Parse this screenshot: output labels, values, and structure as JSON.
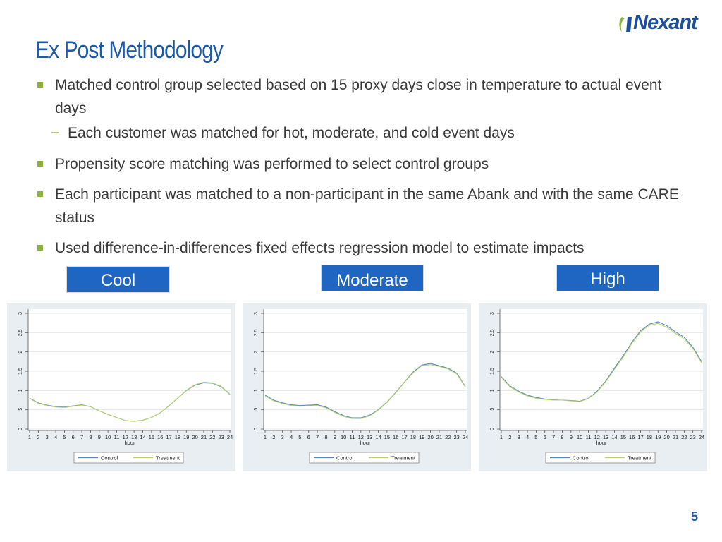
{
  "brand": {
    "name": "Nexant",
    "color": "#1d4f9c"
  },
  "slide": {
    "title": "Ex Post Methodology",
    "page_number": "5"
  },
  "bullets": [
    {
      "text": "Matched control group selected based on 15 proxy days close in temperature to actual event days"
    },
    {
      "sub": "Each customer was matched for hot, moderate, and cold event days"
    },
    {
      "text": "Propensity score matching was performed to select control groups"
    },
    {
      "text": "Each participant was matched to a non-participant in the same Abank and with the same CARE status"
    },
    {
      "text": "Used difference-in-differences fixed effects regression model to estimate impacts"
    }
  ],
  "labels": {
    "cool": "Cool",
    "moderate": "Moderate",
    "high": "High"
  },
  "colors": {
    "accent_green": "#8db43a",
    "label_blue": "#1f66c2",
    "control_line": "#5b86c4",
    "treatment_line": "#b7d36b"
  },
  "chart_data": [
    {
      "type": "line",
      "panel": "Cool",
      "xlabel": "hour",
      "x": [
        1,
        2,
        3,
        4,
        5,
        6,
        7,
        8,
        9,
        10,
        11,
        12,
        13,
        14,
        15,
        16,
        17,
        18,
        19,
        20,
        21,
        22,
        23,
        24
      ],
      "yticks": [
        "0",
        ".5",
        "1",
        "1.5",
        "2",
        "2.5",
        "3"
      ],
      "ylim": [
        0,
        3
      ],
      "xlim": [
        1,
        24
      ],
      "series": [
        {
          "name": "Control",
          "values": [
            0.8,
            0.68,
            0.62,
            0.58,
            0.57,
            0.6,
            0.63,
            0.58,
            0.47,
            0.38,
            0.3,
            0.22,
            0.2,
            0.23,
            0.3,
            0.42,
            0.6,
            0.8,
            1.0,
            1.14,
            1.2,
            1.19,
            1.1,
            0.9
          ]
        },
        {
          "name": "Treatment",
          "values": [
            0.79,
            0.67,
            0.61,
            0.57,
            0.56,
            0.59,
            0.62,
            0.58,
            0.47,
            0.38,
            0.3,
            0.22,
            0.2,
            0.23,
            0.3,
            0.42,
            0.6,
            0.8,
            1.01,
            1.15,
            1.22,
            1.2,
            1.11,
            0.91
          ]
        }
      ],
      "legend": "bottom"
    },
    {
      "type": "line",
      "panel": "Moderate",
      "xlabel": "hour",
      "x": [
        1,
        2,
        3,
        4,
        5,
        6,
        7,
        8,
        9,
        10,
        11,
        12,
        13,
        14,
        15,
        16,
        17,
        18,
        19,
        20,
        21,
        22,
        23,
        24
      ],
      "yticks": [
        "0",
        ".5",
        "1",
        "1.5",
        "2",
        "2.5",
        "3"
      ],
      "ylim": [
        0,
        3
      ],
      "xlim": [
        1,
        24
      ],
      "series": [
        {
          "name": "Control",
          "values": [
            0.88,
            0.75,
            0.68,
            0.63,
            0.61,
            0.62,
            0.63,
            0.57,
            0.45,
            0.35,
            0.29,
            0.29,
            0.36,
            0.5,
            0.7,
            0.95,
            1.22,
            1.48,
            1.66,
            1.7,
            1.64,
            1.58,
            1.45,
            1.1
          ]
        },
        {
          "name": "Treatment",
          "values": [
            0.86,
            0.73,
            0.66,
            0.61,
            0.59,
            0.6,
            0.61,
            0.55,
            0.43,
            0.33,
            0.27,
            0.27,
            0.34,
            0.49,
            0.69,
            0.94,
            1.21,
            1.46,
            1.64,
            1.67,
            1.62,
            1.56,
            1.43,
            1.09
          ]
        }
      ],
      "legend": "bottom"
    },
    {
      "type": "line",
      "panel": "High",
      "xlabel": "hour",
      "x": [
        1,
        2,
        3,
        4,
        5,
        6,
        7,
        8,
        9,
        10,
        11,
        12,
        13,
        14,
        15,
        16,
        17,
        18,
        19,
        20,
        21,
        22,
        23,
        24
      ],
      "yticks": [
        "0",
        ".5",
        "1",
        "1.5",
        "2",
        "2.5",
        "3"
      ],
      "ylim": [
        0,
        3
      ],
      "xlim": [
        1,
        24
      ],
      "series": [
        {
          "name": "Control",
          "values": [
            1.36,
            1.12,
            0.98,
            0.88,
            0.82,
            0.78,
            0.76,
            0.75,
            0.74,
            0.72,
            0.8,
            0.98,
            1.25,
            1.58,
            1.9,
            2.25,
            2.55,
            2.72,
            2.78,
            2.68,
            2.52,
            2.38,
            2.12,
            1.75
          ]
        },
        {
          "name": "Treatment",
          "values": [
            1.34,
            1.1,
            0.96,
            0.86,
            0.8,
            0.77,
            0.75,
            0.75,
            0.73,
            0.71,
            0.79,
            0.96,
            1.23,
            1.55,
            1.87,
            2.22,
            2.52,
            2.69,
            2.74,
            2.64,
            2.48,
            2.34,
            2.09,
            1.72
          ]
        }
      ],
      "legend": "bottom"
    }
  ]
}
